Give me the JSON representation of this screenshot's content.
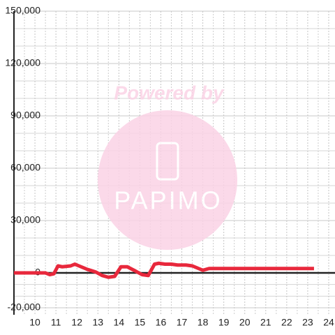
{
  "chart_data": {
    "type": "line",
    "watermark": {
      "caption": "Powered by",
      "logo": "PAPIMO"
    },
    "x": [
      9,
      10.5,
      10.7,
      10.9,
      11.1,
      11.3,
      11.7,
      11.9,
      12.2,
      12.5,
      12.9,
      13.2,
      13.5,
      13.8,
      14.1,
      14.4,
      14.8,
      15.1,
      15.4,
      15.7,
      15.9,
      16.2,
      16.5,
      16.8,
      17.2,
      17.5,
      17.8,
      18.0,
      18.3,
      18.6,
      23.3
    ],
    "series": [
      {
        "color": "#e8283c",
        "values": [
          0,
          0,
          -1000,
          -500,
          4000,
          3500,
          4000,
          5000,
          3500,
          2000,
          500,
          -1500,
          -2500,
          -2000,
          3500,
          3500,
          1000,
          -1000,
          -1500,
          5000,
          5500,
          5000,
          5000,
          4500,
          4500,
          4000,
          2500,
          1500,
          2500,
          2500,
          2500
        ]
      }
    ],
    "xlim": [
      9,
      24.3
    ],
    "xticks": [
      10,
      11,
      12,
      13,
      14,
      15,
      16,
      17,
      18,
      19,
      20,
      21,
      22,
      23,
      24
    ],
    "ylim": [
      -24000,
      150000
    ],
    "yticks": [
      {
        "value": -20000,
        "label": "-20,000"
      },
      0,
      {
        "value": 30000,
        "label": "30,000"
      },
      {
        "value": 60000,
        "label": "60,000"
      },
      {
        "value": 90000,
        "label": "90,000"
      },
      {
        "value": 120000,
        "label": "120,000"
      },
      {
        "value": 150000,
        "label": "150,000"
      }
    ],
    "grid": true
  }
}
